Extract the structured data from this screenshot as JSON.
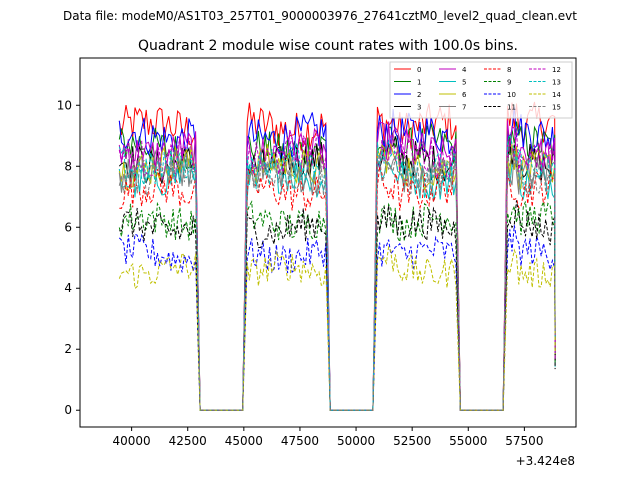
{
  "header": {
    "data_file": "Data file: modeM0/AS1T03_257T01_9000003976_27641cztM0_level2_quad_clean.evt"
  },
  "chart_data": {
    "type": "line",
    "title": "Quadrant 2 module wise count rates with 100.0s bins.",
    "xlabel": "",
    "ylabel": "",
    "x_offset_label": "+3.424e8",
    "x_offset": 342400000,
    "xlim": [
      37700,
      59800
    ],
    "ylim": [
      -0.55,
      11.55
    ],
    "xticks": [
      40000,
      42500,
      45000,
      47500,
      50000,
      52500,
      55000,
      57500
    ],
    "xtick_labels": [
      "40000",
      "42500",
      "45000",
      "47500",
      "50000",
      "52500",
      "55000",
      "57500"
    ],
    "yticks": [
      0,
      2,
      4,
      6,
      8,
      10
    ],
    "ytick_labels": [
      "0",
      "2",
      "4",
      "6",
      "8",
      "10"
    ],
    "bin_seconds": 100,
    "segments": [
      {
        "start": 39450,
        "end": 42850
      },
      {
        "start": 45150,
        "end": 48650
      },
      {
        "start": 50950,
        "end": 54450
      },
      {
        "start": 56750,
        "end": 58850
      }
    ],
    "gaps_zero": [
      [
        43050,
        44850
      ],
      [
        48850,
        50750
      ],
      [
        54650,
        57250
      ]
    ],
    "legend_position": "top-right",
    "series": [
      {
        "name": "0",
        "color": "#ff0000",
        "dash": "solid",
        "mean": 9.3
      },
      {
        "name": "1",
        "color": "#008000",
        "dash": "solid",
        "mean": 8.6
      },
      {
        "name": "2",
        "color": "#0000ff",
        "dash": "solid",
        "mean": 9.0
      },
      {
        "name": "3",
        "color": "#000000",
        "dash": "solid",
        "mean": 8.1
      },
      {
        "name": "4",
        "color": "#bf00bf",
        "dash": "solid",
        "mean": 8.5
      },
      {
        "name": "5",
        "color": "#00bfbf",
        "dash": "solid",
        "mean": 7.6
      },
      {
        "name": "6",
        "color": "#bfbf00",
        "dash": "solid",
        "mean": 8.0
      },
      {
        "name": "7",
        "color": "#808080",
        "dash": "solid",
        "mean": 7.8
      },
      {
        "name": "8",
        "color": "#ff0000",
        "dash": "dashed",
        "mean": 7.2
      },
      {
        "name": "9",
        "color": "#008000",
        "dash": "dashed",
        "mean": 6.2
      },
      {
        "name": "10",
        "color": "#0000ff",
        "dash": "dashed",
        "mean": 5.1
      },
      {
        "name": "11",
        "color": "#000000",
        "dash": "dashed",
        "mean": 6.0
      },
      {
        "name": "12",
        "color": "#bf00bf",
        "dash": "dashed",
        "mean": 8.3
      },
      {
        "name": "13",
        "color": "#00bfbf",
        "dash": "dashed",
        "mean": 8.0
      },
      {
        "name": "14",
        "color": "#bfbf00",
        "dash": "dashed",
        "mean": 4.6
      },
      {
        "name": "15",
        "color": "#808080",
        "dash": "dashed",
        "mean": 7.7
      }
    ]
  }
}
